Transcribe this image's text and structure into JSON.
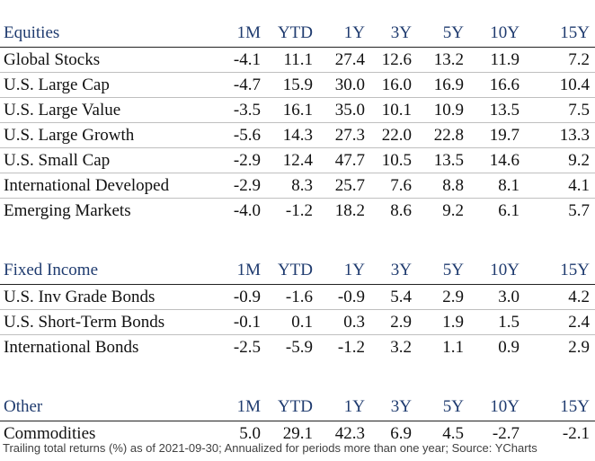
{
  "columns": [
    "1M",
    "YTD",
    "1Y",
    "3Y",
    "5Y",
    "10Y",
    "15Y"
  ],
  "sections": [
    {
      "title": "Equities",
      "rows": [
        {
          "name": "Global Stocks",
          "values": [
            "-4.1",
            "11.1",
            "27.4",
            "12.6",
            "13.2",
            "11.9",
            "7.2"
          ]
        },
        {
          "name": "U.S. Large Cap",
          "values": [
            "-4.7",
            "15.9",
            "30.0",
            "16.0",
            "16.9",
            "16.6",
            "10.4"
          ]
        },
        {
          "name": "U.S. Large Value",
          "values": [
            "-3.5",
            "16.1",
            "35.0",
            "10.1",
            "10.9",
            "13.5",
            "7.5"
          ]
        },
        {
          "name": "U.S. Large Growth",
          "values": [
            "-5.6",
            "14.3",
            "27.3",
            "22.0",
            "22.8",
            "19.7",
            "13.3"
          ]
        },
        {
          "name": "U.S. Small Cap",
          "values": [
            "-2.9",
            "12.4",
            "47.7",
            "10.5",
            "13.5",
            "14.6",
            "9.2"
          ]
        },
        {
          "name": "International Developed",
          "values": [
            "-2.9",
            "8.3",
            "25.7",
            "7.6",
            "8.8",
            "8.1",
            "4.1"
          ]
        },
        {
          "name": "Emerging Markets",
          "values": [
            "-4.0",
            "-1.2",
            "18.2",
            "8.6",
            "9.2",
            "6.1",
            "5.7"
          ]
        }
      ]
    },
    {
      "title": "Fixed Income",
      "rows": [
        {
          "name": "U.S. Inv Grade Bonds",
          "values": [
            "-0.9",
            "-1.6",
            "-0.9",
            "5.4",
            "2.9",
            "3.0",
            "4.2"
          ]
        },
        {
          "name": "U.S. Short-Term Bonds",
          "values": [
            "-0.1",
            "0.1",
            "0.3",
            "2.9",
            "1.9",
            "1.5",
            "2.4"
          ]
        },
        {
          "name": "International Bonds",
          "values": [
            "-2.5",
            "-5.9",
            "-1.2",
            "3.2",
            "1.1",
            "0.9",
            "2.9"
          ]
        }
      ]
    },
    {
      "title": "Other",
      "rows": [
        {
          "name": "Commodities",
          "values": [
            "5.0",
            "29.1",
            "42.3",
            "6.9",
            "4.5",
            "-2.7",
            "-2.1"
          ]
        }
      ]
    }
  ],
  "footnote": "Trailing total returns (%) as of 2021-09-30; Annualized for periods more than one year; Source: YCharts",
  "colors": {
    "header_text": "#1f3b6f",
    "body_text": "#111111",
    "row_rule": "#bfbfbf",
    "header_rule": "#222222"
  }
}
